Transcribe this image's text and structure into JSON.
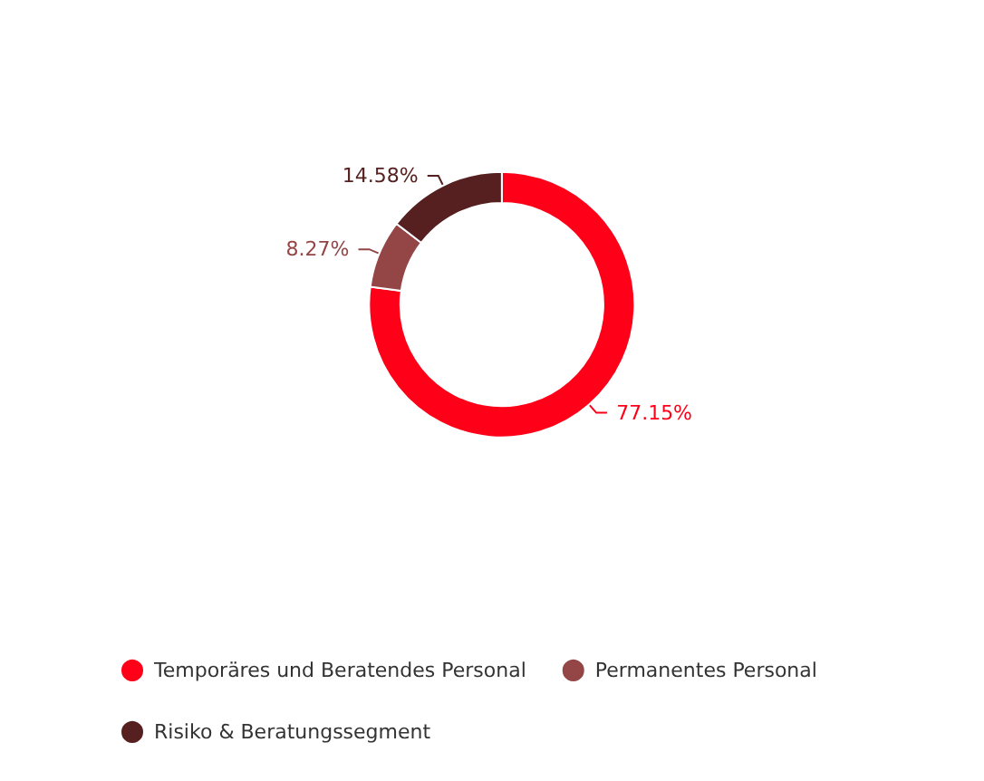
{
  "chart_data": {
    "type": "donut",
    "categories": [
      "Temporäres und Beratendes Personal",
      "Permanentes Personal",
      "Risiko & Beratungssegment"
    ],
    "values": [
      77.15,
      8.27,
      14.58
    ],
    "value_labels": [
      "77.15%",
      "8.27%",
      "14.58%"
    ],
    "colors": [
      "#ff0019",
      "#944545",
      "#55201f"
    ],
    "legend": "bottom"
  }
}
